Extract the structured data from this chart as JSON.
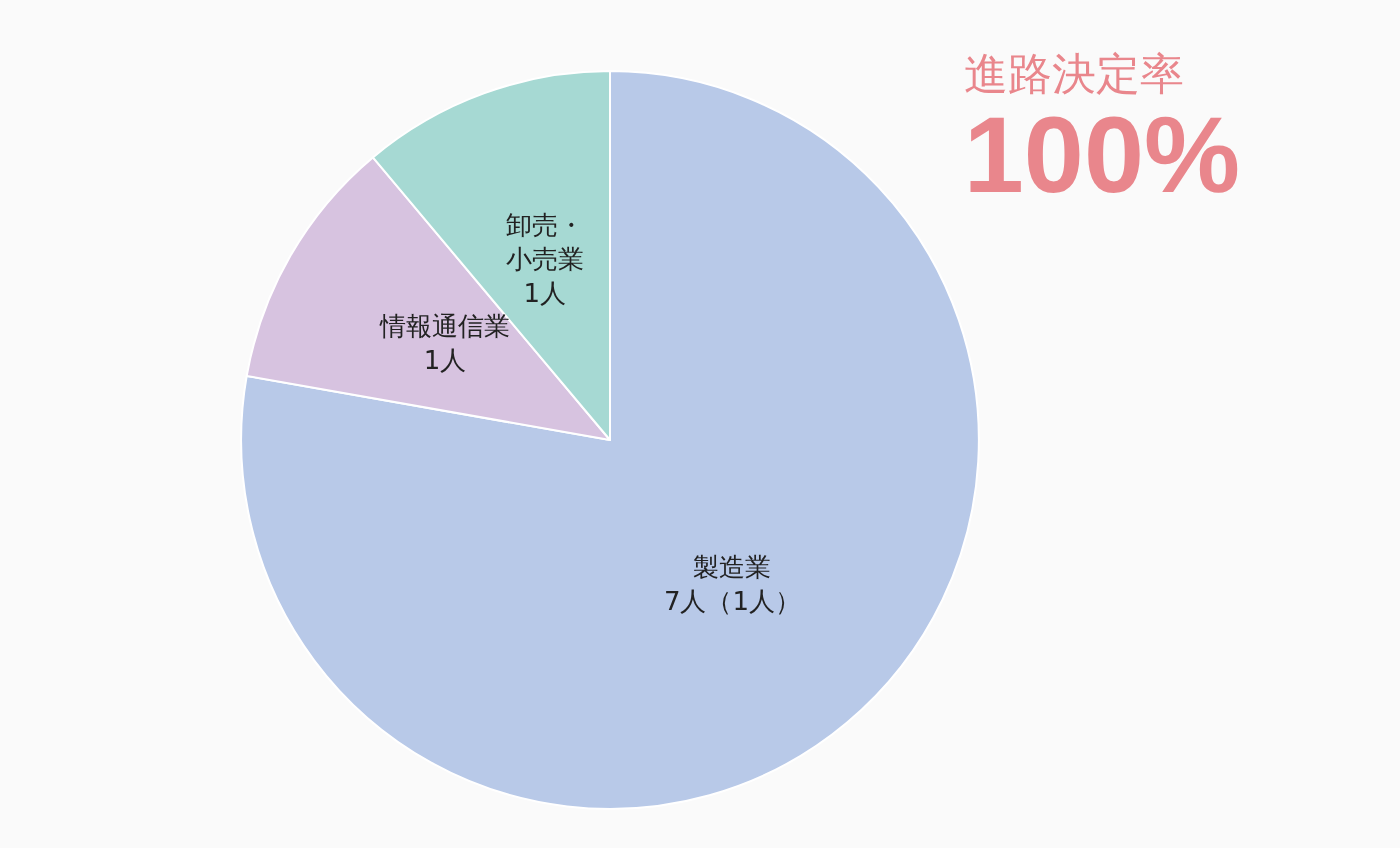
{
  "chart_data": {
    "type": "pie",
    "title": "進路決定率",
    "subtitle": "100%",
    "categories": [
      "製造業",
      "情報通信業",
      "卸売・小売業"
    ],
    "values": [
      7,
      1,
      1
    ],
    "value_labels": [
      "7人（1人）",
      "1人",
      "1人"
    ],
    "colors": [
      "#b8c9e8",
      "#d7c3e0",
      "#a6d9d3"
    ],
    "legend": false
  }
}
